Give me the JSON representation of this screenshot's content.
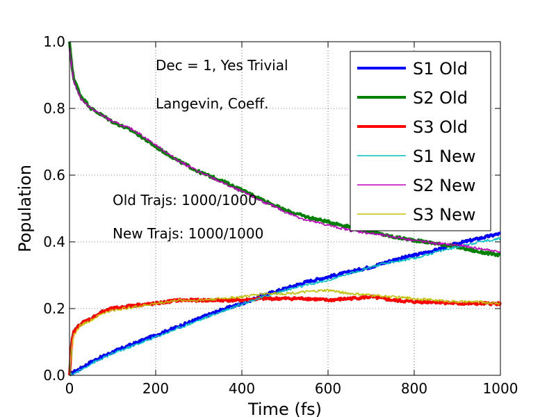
{
  "chart_data": {
    "type": "line",
    "xlabel": "Time (fs)",
    "ylabel": "Population",
    "xlim": [
      0,
      1000
    ],
    "ylim": [
      0.0,
      1.0
    ],
    "xticks": [
      0,
      200,
      400,
      600,
      800,
      1000
    ],
    "yticks": [
      0.0,
      0.2,
      0.4,
      0.6,
      0.8,
      1.0
    ],
    "xtick_labels": [
      "0",
      "200",
      "400",
      "600",
      "800",
      "1000"
    ],
    "ytick_labels": [
      "0.0",
      "0.2",
      "0.4",
      "0.6",
      "0.8",
      "1.0"
    ],
    "grid": true,
    "legend_position": "top-right",
    "annotations": [
      {
        "text": "Dec = 1, Yes Trivial",
        "x": 200,
        "y": 0.915
      },
      {
        "text": "Langevin, Coeff.",
        "x": 200,
        "y": 0.8
      },
      {
        "text": "Old Trajs: 1000/1000",
        "x": 100,
        "y": 0.51
      },
      {
        "text": "New Trajs: 1000/1000",
        "x": 100,
        "y": 0.41
      }
    ],
    "series": [
      {
        "name": "S1 Old",
        "color": "#0000ff",
        "style": "thick",
        "x": [
          0,
          10,
          25,
          50,
          100,
          150,
          200,
          250,
          300,
          350,
          400,
          450,
          500,
          550,
          600,
          650,
          700,
          750,
          800,
          850,
          900,
          950,
          1000
        ],
        "y": [
          0.0,
          0.01,
          0.02,
          0.04,
          0.07,
          0.095,
          0.12,
          0.145,
          0.17,
          0.195,
          0.215,
          0.24,
          0.26,
          0.28,
          0.295,
          0.31,
          0.325,
          0.345,
          0.36,
          0.375,
          0.395,
          0.41,
          0.425
        ]
      },
      {
        "name": "S2 Old",
        "color": "#008000",
        "style": "thick",
        "x": [
          0,
          5,
          10,
          25,
          50,
          100,
          150,
          200,
          250,
          300,
          350,
          400,
          450,
          500,
          550,
          600,
          650,
          700,
          750,
          800,
          850,
          900,
          950,
          1000
        ],
        "y": [
          1.0,
          0.93,
          0.89,
          0.84,
          0.8,
          0.76,
          0.73,
          0.685,
          0.645,
          0.61,
          0.585,
          0.555,
          0.525,
          0.495,
          0.475,
          0.46,
          0.445,
          0.43,
          0.415,
          0.405,
          0.395,
          0.385,
          0.37,
          0.36
        ]
      },
      {
        "name": "S3 Old",
        "color": "#ff0000",
        "style": "thick",
        "x": [
          0,
          5,
          10,
          25,
          50,
          75,
          100,
          150,
          200,
          250,
          300,
          350,
          400,
          450,
          500,
          550,
          600,
          650,
          700,
          750,
          800,
          850,
          900,
          950,
          1000
        ],
        "y": [
          0.0,
          0.1,
          0.13,
          0.155,
          0.17,
          0.19,
          0.2,
          0.21,
          0.215,
          0.225,
          0.225,
          0.225,
          0.225,
          0.23,
          0.23,
          0.23,
          0.225,
          0.23,
          0.235,
          0.225,
          0.22,
          0.22,
          0.215,
          0.215,
          0.215
        ]
      },
      {
        "name": "S1 New",
        "color": "#00bfbf",
        "style": "thin",
        "x": [
          0,
          10,
          25,
          50,
          100,
          150,
          200,
          250,
          300,
          350,
          400,
          450,
          500,
          550,
          600,
          650,
          700,
          750,
          800,
          850,
          900,
          950,
          1000
        ],
        "y": [
          0.0,
          0.005,
          0.015,
          0.035,
          0.065,
          0.09,
          0.115,
          0.14,
          0.165,
          0.19,
          0.215,
          0.235,
          0.255,
          0.27,
          0.285,
          0.305,
          0.325,
          0.34,
          0.35,
          0.37,
          0.385,
          0.4,
          0.41
        ]
      },
      {
        "name": "S2 New",
        "color": "#bf00bf",
        "style": "thin",
        "x": [
          0,
          5,
          10,
          25,
          50,
          100,
          150,
          200,
          250,
          300,
          350,
          400,
          450,
          500,
          550,
          600,
          650,
          700,
          750,
          800,
          850,
          900,
          950,
          1000
        ],
        "y": [
          0.98,
          0.92,
          0.88,
          0.83,
          0.8,
          0.76,
          0.735,
          0.69,
          0.645,
          0.61,
          0.58,
          0.55,
          0.52,
          0.49,
          0.465,
          0.45,
          0.435,
          0.425,
          0.415,
          0.405,
          0.395,
          0.39,
          0.38,
          0.37
        ]
      },
      {
        "name": "S3 New",
        "color": "#bfbf00",
        "style": "thin",
        "x": [
          0,
          5,
          10,
          25,
          50,
          75,
          100,
          150,
          200,
          250,
          300,
          350,
          400,
          450,
          500,
          550,
          600,
          650,
          700,
          750,
          800,
          850,
          900,
          950,
          1000
        ],
        "y": [
          0.0,
          0.09,
          0.12,
          0.15,
          0.165,
          0.185,
          0.195,
          0.205,
          0.215,
          0.225,
          0.225,
          0.23,
          0.235,
          0.245,
          0.245,
          0.25,
          0.255,
          0.245,
          0.24,
          0.235,
          0.23,
          0.225,
          0.22,
          0.22,
          0.215
        ]
      }
    ]
  }
}
